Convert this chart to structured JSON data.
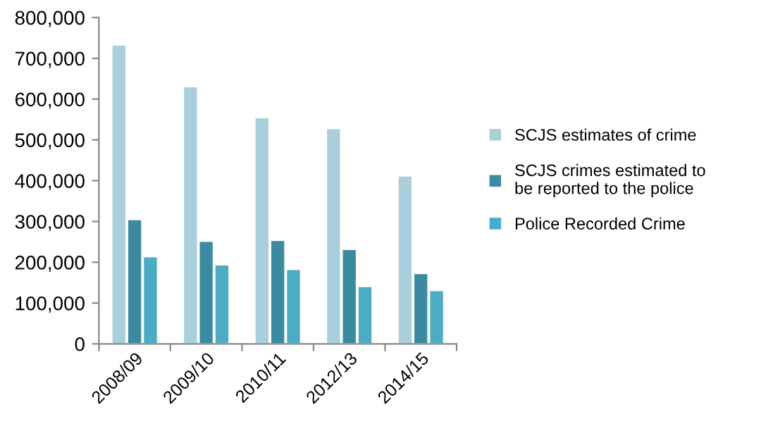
{
  "chart_data": {
    "type": "bar",
    "categories": [
      "2008/09",
      "2009/10",
      "2010/11",
      "2012/13",
      "2014/15"
    ],
    "series": [
      {
        "name": "SCJS estimates of crime",
        "color": "#a9cfdc",
        "values": [
          733000,
          631000,
          555000,
          528000,
          412000
        ]
      },
      {
        "name": "SCJS crimes estimated to be reported to the police",
        "color": "#3a8ba2",
        "values": [
          305000,
          252000,
          254000,
          232000,
          173000
        ]
      },
      {
        "name": "Police Recorded Crime",
        "color": "#4bacc6",
        "values": [
          214000,
          194000,
          183000,
          141000,
          131000
        ]
      }
    ],
    "ylim": [
      0,
      800000
    ],
    "yticks": [
      {
        "value": 0,
        "label": "0"
      },
      {
        "value": 100000,
        "label": "100,000"
      },
      {
        "value": 200000,
        "label": "200,000"
      },
      {
        "value": 300000,
        "label": "300,000"
      },
      {
        "value": 400000,
        "label": "400,000"
      },
      {
        "value": 500000,
        "label": "500,000"
      },
      {
        "value": 600000,
        "label": "600,000"
      },
      {
        "value": 700000,
        "label": "700,000"
      },
      {
        "value": 800000,
        "label": "800,000"
      }
    ],
    "grid": false,
    "legend": "right"
  }
}
